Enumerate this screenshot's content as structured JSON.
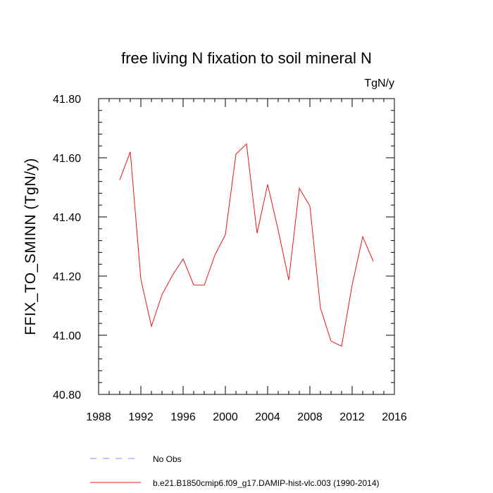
{
  "chart_data": {
    "type": "line",
    "title": "free living N fixation to soil mineral N",
    "units_label": "TgN/y",
    "xlabel": "",
    "ylabel": "FFIX_TO_SMINN  (TgN/y)",
    "xlim": [
      1988,
      2016
    ],
    "ylim": [
      40.8,
      41.8
    ],
    "x_ticks": [
      1988,
      1992,
      1996,
      2000,
      2004,
      2008,
      2012,
      2016
    ],
    "x_tick_labels": [
      "1988",
      "1992",
      "1996",
      "2000",
      "2004",
      "2008",
      "2012",
      "2016"
    ],
    "y_ticks": [
      40.8,
      41.0,
      41.2,
      41.4,
      41.6,
      41.8
    ],
    "y_tick_labels": [
      "40.80",
      "41.00",
      "41.20",
      "41.40",
      "41.60",
      "41.80"
    ],
    "series": [
      {
        "name": "b.e21.B1850cmip6.f09_g17.DAMIP-hist-vlc.003 (1990-2014)",
        "color": "#e8141c",
        "x": [
          1990,
          1991,
          1992,
          1993,
          1994,
          1995,
          1996,
          1997,
          1998,
          1999,
          2000,
          2001,
          2002,
          2003,
          2004,
          2005,
          2006,
          2007,
          2008,
          2009,
          2010,
          2011,
          2012,
          2013,
          2014
        ],
        "values": [
          41.525,
          41.62,
          41.19,
          41.03,
          41.137,
          41.203,
          41.258,
          41.17,
          41.169,
          41.27,
          41.34,
          41.612,
          41.647,
          41.345,
          41.51,
          41.355,
          41.187,
          41.497,
          41.437,
          41.092,
          40.98,
          40.963,
          41.17,
          41.333,
          41.25
        ]
      }
    ],
    "legend": [
      {
        "label": "No Obs",
        "color": "#8888ee",
        "style": "dashed"
      },
      {
        "label": "b.e21.B1850cmip6.f09_g17.DAMIP-hist-vlc.003 (1990-2014)",
        "color": "#e8141c",
        "style": "solid"
      }
    ]
  }
}
